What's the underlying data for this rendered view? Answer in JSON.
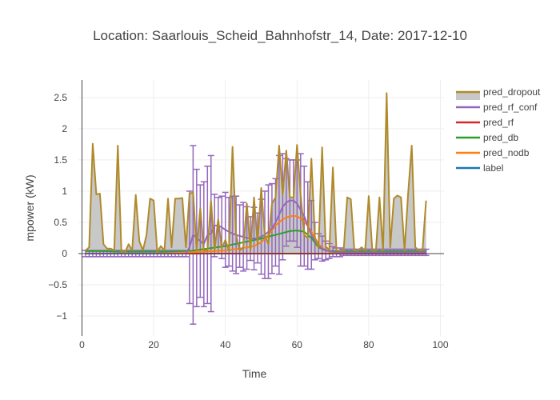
{
  "chart_data": {
    "type": "line",
    "title": "Location: Saarlouis_Scheid_Bahnhofstr_14, Date: 2017-12-10",
    "xlabel": "Time",
    "ylabel": "mpower (kW)",
    "xlim": [
      -1,
      101
    ],
    "ylim": [
      -1.32,
      2.78
    ],
    "x_ticks": [
      0,
      20,
      40,
      60,
      80,
      100
    ],
    "y_ticks": [
      -1,
      -0.5,
      0,
      0.5,
      1,
      1.5,
      2,
      2.5
    ],
    "x_tick_labels": [
      "0",
      "20",
      "40",
      "60",
      "80",
      "100"
    ],
    "y_tick_labels": [
      "−1",
      "−0.5",
      "0",
      "0.5",
      "1",
      "1.5",
      "2",
      "2.5"
    ],
    "grid": true,
    "legend_position": "top-right",
    "legend": [
      "pred_dropout",
      "pred_rf_conf",
      "pred_rf",
      "pred_db",
      "pred_nodb",
      "label"
    ],
    "series": [
      {
        "name": "pred_dropout",
        "color": "#b08a2a",
        "fill": "#c8c8c8",
        "x": [
          1,
          2,
          3,
          4,
          5,
          6,
          7,
          8,
          9,
          10,
          11,
          12,
          13,
          14,
          15,
          16,
          17,
          18,
          19,
          20,
          21,
          22,
          23,
          24,
          25,
          26,
          27,
          28,
          29,
          30,
          31,
          32,
          33,
          34,
          35,
          36,
          37,
          38,
          39,
          40,
          41,
          42,
          43,
          44,
          45,
          46,
          47,
          48,
          49,
          50,
          51,
          52,
          53,
          54,
          55,
          56,
          57,
          58,
          59,
          60,
          61,
          62,
          63,
          64,
          65,
          66,
          67,
          68,
          69,
          70,
          71,
          72,
          73,
          74,
          75,
          76,
          77,
          78,
          79,
          80,
          81,
          82,
          83,
          84,
          85,
          86,
          87,
          88,
          89,
          90,
          91,
          92,
          93,
          94,
          95,
          96
        ],
        "values": [
          0.05,
          0.1,
          1.76,
          0.95,
          0.96,
          0.15,
          0.08,
          0.08,
          0.05,
          1.73,
          0.03,
          0.02,
          0.15,
          0.05,
          0.94,
          0.2,
          0.05,
          0.3,
          0.88,
          0.85,
          0.03,
          0.12,
          0.05,
          0.88,
          0.1,
          0.88,
          0.88,
          0.89,
          0.1,
          0.96,
          0.98,
          0.05,
          0.73,
          0.05,
          0.05,
          0.85,
          0.05,
          0.55,
          0.08,
          0.22,
          0.05,
          1.71,
          0.3,
          0.05,
          0.1,
          0.8,
          0.05,
          0.9,
          0.15,
          1.05,
          0.3,
          0.15,
          0.8,
          0.9,
          1.73,
          0.95,
          1.65,
          0.9,
          0.9,
          1.74,
          0.95,
          0.3,
          0.25,
          1.52,
          0.25,
          0.1,
          1.7,
          0.12,
          0.05,
          1.38,
          0.05,
          0.05,
          0.05,
          0.9,
          0.87,
          0.05,
          0.05,
          0.1,
          0.05,
          0.92,
          0.05,
          0.05,
          0.9,
          0.05,
          2.57,
          0.1,
          0.88,
          0.93,
          0.9,
          0.05,
          0.97,
          1.73,
          0.1,
          0.05,
          0.05,
          0.85
        ]
      },
      {
        "name": "pred_rf_conf",
        "color": "#9467bd",
        "x": [
          1,
          2,
          3,
          4,
          5,
          6,
          7,
          8,
          9,
          10,
          11,
          12,
          13,
          14,
          15,
          16,
          17,
          18,
          19,
          20,
          21,
          22,
          23,
          24,
          25,
          26,
          27,
          28,
          29,
          30,
          31,
          32,
          33,
          34,
          35,
          36,
          37,
          38,
          39,
          40,
          41,
          42,
          43,
          44,
          45,
          46,
          47,
          48,
          49,
          50,
          51,
          52,
          53,
          54,
          55,
          56,
          57,
          58,
          59,
          60,
          61,
          62,
          63,
          64,
          65,
          66,
          67,
          68,
          69,
          70,
          71,
          72,
          73,
          74,
          75,
          76,
          77,
          78,
          79,
          80,
          81,
          82,
          83,
          84,
          85,
          86,
          87,
          88,
          89,
          90,
          91,
          92,
          93,
          94,
          95,
          96
        ],
        "values": [
          0,
          0,
          0,
          0,
          0,
          0,
          0,
          0,
          0,
          0,
          0,
          0,
          0,
          0,
          0,
          0,
          0,
          0,
          0,
          0,
          0,
          0,
          0,
          0,
          0,
          0,
          0,
          0,
          0,
          0.1,
          0.3,
          0.25,
          0.2,
          0.15,
          0.3,
          0.32,
          0.45,
          0.45,
          0.42,
          0.38,
          0.35,
          0.32,
          0.3,
          0.28,
          0.27,
          0.25,
          0.24,
          0.24,
          0.25,
          0.27,
          0.3,
          0.35,
          0.4,
          0.5,
          0.62,
          0.75,
          0.82,
          0.85,
          0.85,
          0.8,
          0.7,
          0.6,
          0.45,
          0.3,
          0.2,
          0.12,
          0.08,
          0.05,
          0.04,
          0.03,
          0.02,
          0.02,
          0.02,
          0.02,
          0.02,
          0.02,
          0.02,
          0.02,
          0.02,
          0.02,
          0.02,
          0.02,
          0.02,
          0.02,
          0.02,
          0.02,
          0.02,
          0.02,
          0.02,
          0.02,
          0.02,
          0.02,
          0.02,
          0.02,
          0.02,
          0.02
        ],
        "error": [
          0.05,
          0.05,
          0.05,
          0.05,
          0.05,
          0.05,
          0.05,
          0.05,
          0.05,
          0.05,
          0.05,
          0.05,
          0.05,
          0.05,
          0.05,
          0.05,
          0.05,
          0.05,
          0.05,
          0.05,
          0.05,
          0.05,
          0.05,
          0.05,
          0.05,
          0.05,
          0.05,
          0.05,
          0.05,
          0.9,
          1.43,
          1.1,
          0.9,
          1.0,
          1.1,
          1.25,
          0.5,
          0.45,
          0.5,
          0.6,
          0.55,
          0.6,
          0.62,
          0.5,
          0.55,
          0.5,
          0.35,
          0.5,
          0.4,
          0.6,
          0.7,
          0.75,
          0.72,
          0.7,
          0.95,
          0.85,
          0.7,
          0.65,
          0.65,
          0.7,
          0.9,
          0.8,
          0.7,
          0.55,
          0.3,
          0.2,
          0.2,
          0.15,
          0.12,
          0.08,
          0.07,
          0.07,
          0.05,
          0.05,
          0.05,
          0.05,
          0.05,
          0.05,
          0.05,
          0.05,
          0.05,
          0.05,
          0.05,
          0.05,
          0.05,
          0.05,
          0.05,
          0.05,
          0.05,
          0.05,
          0.05,
          0.05,
          0.05,
          0.05,
          0.05,
          0.05
        ]
      },
      {
        "name": "pred_rf",
        "color": "#d62728",
        "x": [
          1,
          96
        ],
        "values": [
          0.0,
          0.0
        ]
      },
      {
        "name": "pred_db",
        "color": "#2ca02c",
        "x": [
          1,
          5,
          10,
          15,
          20,
          25,
          30,
          35,
          40,
          45,
          50,
          52,
          54,
          56,
          58,
          60,
          62,
          64,
          66,
          68,
          70,
          75,
          80,
          85,
          90,
          96
        ],
        "values": [
          0.04,
          0.04,
          0.03,
          0.03,
          0.03,
          0.03,
          0.04,
          0.08,
          0.12,
          0.18,
          0.24,
          0.27,
          0.3,
          0.33,
          0.36,
          0.37,
          0.35,
          0.25,
          0.1,
          0.05,
          0.04,
          0.04,
          0.04,
          0.04,
          0.04,
          0.04
        ]
      },
      {
        "name": "pred_nodb",
        "color": "#ff7f0e",
        "x": [
          1,
          10,
          20,
          30,
          40,
          44,
          48,
          50,
          52,
          54,
          56,
          58,
          60,
          62,
          64,
          66,
          68,
          70,
          75,
          80,
          90,
          96
        ],
        "values": [
          0.0,
          0.0,
          0.0,
          0.02,
          0.05,
          0.08,
          0.12,
          0.18,
          0.3,
          0.45,
          0.55,
          0.6,
          0.6,
          0.52,
          0.35,
          0.15,
          0.05,
          0.02,
          0.01,
          0.01,
          0.01,
          0.01
        ]
      },
      {
        "name": "label",
        "color": "#1f77b4",
        "x": [
          1,
          96
        ],
        "values": [
          0.0,
          0.0
        ]
      }
    ]
  }
}
